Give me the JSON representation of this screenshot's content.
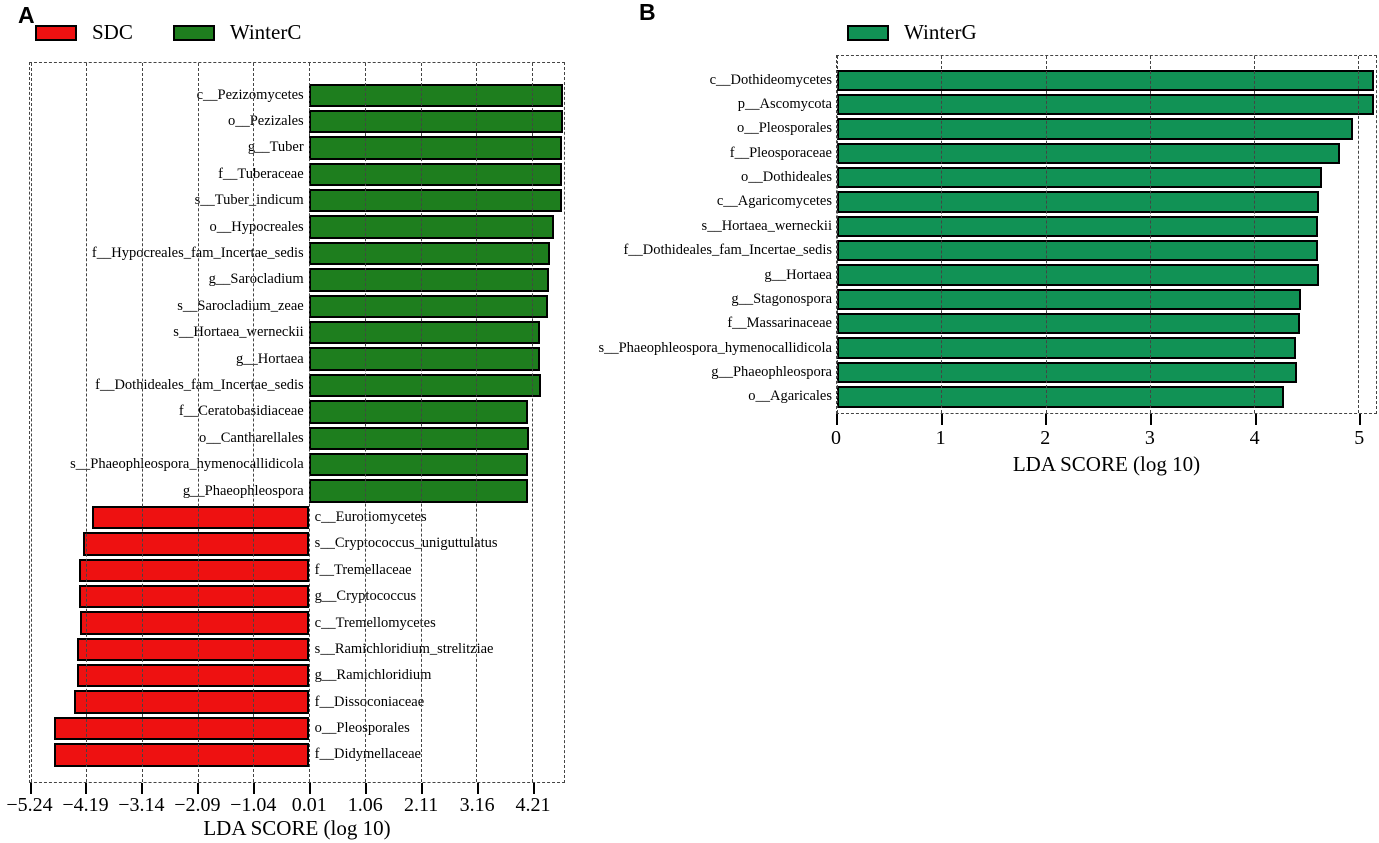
{
  "figure": {
    "panels": [
      {
        "letter": "A"
      },
      {
        "letter": "B"
      }
    ],
    "colors": {
      "sdc_red": "#EE1111",
      "winterc_green": "#1E7E1E",
      "winterg_green": "#119255",
      "bar_border": "#000000"
    }
  },
  "chart_data": [
    {
      "type": "bar",
      "orientation": "horizontal",
      "panel": "A",
      "xlabel": "LDA SCORE (log 10)",
      "xlim": [
        -5.25,
        4.81
      ],
      "grid": "dashed-vertical",
      "legend": [
        {
          "label": "SDC",
          "color": "#EE1111"
        },
        {
          "label": "WinterC",
          "color": "#1E7E1E"
        }
      ],
      "xticks": [
        {
          "label": "−5.24",
          "value": -5.24
        },
        {
          "label": "−4.19",
          "value": -4.19
        },
        {
          "label": "−3.14",
          "value": -3.14
        },
        {
          "label": "−2.09",
          "value": -2.09
        },
        {
          "label": "−1.04",
          "value": -1.04
        },
        {
          "label": "0.01",
          "value": 0.01
        },
        {
          "label": "1.06",
          "value": 1.06
        },
        {
          "label": "2.11",
          "value": 2.11
        },
        {
          "label": "3.16",
          "value": 3.16
        },
        {
          "label": "4.21",
          "value": 4.21
        }
      ],
      "bars": [
        {
          "label": "c__Pezizomycetes",
          "value": 4.79,
          "group": "WinterC"
        },
        {
          "label": "o__Pezizales",
          "value": 4.79,
          "group": "WinterC"
        },
        {
          "label": "g__Tuber",
          "value": 4.77,
          "group": "WinterC"
        },
        {
          "label": "f__Tuberaceae",
          "value": 4.77,
          "group": "WinterC"
        },
        {
          "label": "s__Tuber_indicum",
          "value": 4.77,
          "group": "WinterC"
        },
        {
          "label": "o__Hypocreales",
          "value": 4.63,
          "group": "WinterC"
        },
        {
          "label": "f__Hypocreales_fam_Incertae_sedis",
          "value": 4.55,
          "group": "WinterC"
        },
        {
          "label": "g__Sarocladium",
          "value": 4.52,
          "group": "WinterC"
        },
        {
          "label": "s__Sarocladium_zeae",
          "value": 4.51,
          "group": "WinterC"
        },
        {
          "label": "s__Hortaea_werneckii",
          "value": 4.35,
          "group": "WinterC"
        },
        {
          "label": "g__Hortaea",
          "value": 4.36,
          "group": "WinterC"
        },
        {
          "label": "f__Dothideales_fam_Incertae_sedis",
          "value": 4.37,
          "group": "WinterC"
        },
        {
          "label": "f__Ceratobasidiaceae",
          "value": 4.13,
          "group": "WinterC"
        },
        {
          "label": "o__Cantharellales",
          "value": 4.15,
          "group": "WinterC"
        },
        {
          "label": "s__Phaeophleospora_hymenocallidicola",
          "value": 4.13,
          "group": "WinterC"
        },
        {
          "label": "g__Phaeophleospora",
          "value": 4.13,
          "group": "WinterC"
        },
        {
          "label": "c__Eurotiomycetes",
          "value": -4.09,
          "group": "SDC"
        },
        {
          "label": "s__Cryptococcus_uniguttulatus",
          "value": -4.26,
          "group": "SDC"
        },
        {
          "label": "f__Tremellaceae",
          "value": -4.32,
          "group": "SDC"
        },
        {
          "label": "g__Cryptococcus",
          "value": -4.32,
          "group": "SDC"
        },
        {
          "label": "c__Tremellomycetes",
          "value": -4.3,
          "group": "SDC"
        },
        {
          "label": "s__Ramichloridium_strelitziae",
          "value": -4.36,
          "group": "SDC"
        },
        {
          "label": "g__Ramichloridium",
          "value": -4.36,
          "group": "SDC"
        },
        {
          "label": "f__Dissoconiaceae",
          "value": -4.43,
          "group": "SDC"
        },
        {
          "label": "o__Pleosporales",
          "value": -4.79,
          "group": "SDC"
        },
        {
          "label": "f__Didymellaceae",
          "value": -4.8,
          "group": "SDC"
        }
      ]
    },
    {
      "type": "bar",
      "orientation": "horizontal",
      "panel": "B",
      "xlabel": "LDA SCORE (log 10)",
      "xlim": [
        0,
        5.17
      ],
      "grid": "dashed-vertical",
      "legend": [
        {
          "label": "WinterG",
          "color": "#119255"
        }
      ],
      "xticks": [
        {
          "label": "0",
          "value": 0
        },
        {
          "label": "1",
          "value": 1
        },
        {
          "label": "2",
          "value": 2
        },
        {
          "label": "3",
          "value": 3
        },
        {
          "label": "4",
          "value": 4
        },
        {
          "label": "5",
          "value": 5
        }
      ],
      "bars": [
        {
          "label": "c__Dothideomycetes",
          "value": 5.15,
          "group": "WinterG"
        },
        {
          "label": "p__Ascomycota",
          "value": 5.15,
          "group": "WinterG"
        },
        {
          "label": "o__Pleosporales",
          "value": 4.95,
          "group": "WinterG"
        },
        {
          "label": "f__Pleosporaceae",
          "value": 4.82,
          "group": "WinterG"
        },
        {
          "label": "o__Dothideales",
          "value": 4.65,
          "group": "WinterG"
        },
        {
          "label": "c__Agaricomycetes",
          "value": 4.62,
          "group": "WinterG"
        },
        {
          "label": "s__Hortaea_werneckii",
          "value": 4.61,
          "group": "WinterG"
        },
        {
          "label": "f__Dothideales_fam_Incertae_sedis",
          "value": 4.61,
          "group": "WinterG"
        },
        {
          "label": "g__Hortaea",
          "value": 4.62,
          "group": "WinterG"
        },
        {
          "label": "g__Stagonospora",
          "value": 4.45,
          "group": "WinterG"
        },
        {
          "label": "f__Massarinaceae",
          "value": 4.44,
          "group": "WinterG"
        },
        {
          "label": "s__Phaeophleospora_hymenocallidicola",
          "value": 4.4,
          "group": "WinterG"
        },
        {
          "label": "g__Phaeophleospora",
          "value": 4.41,
          "group": "WinterG"
        },
        {
          "label": "o__Agaricales",
          "value": 4.29,
          "group": "WinterG"
        }
      ]
    }
  ]
}
